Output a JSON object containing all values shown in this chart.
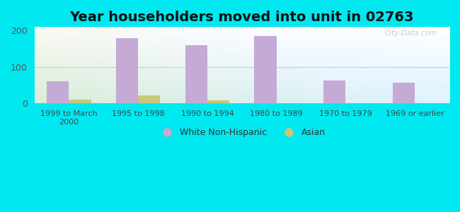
{
  "title": "Year householders moved into unit in 02763",
  "categories": [
    "1999 to March\n2000",
    "1995 to 1998",
    "1990 to 1994",
    "1980 to 1989",
    "1970 to 1979",
    "1969 or earlier"
  ],
  "white_non_hispanic": [
    60,
    180,
    160,
    185,
    62,
    57
  ],
  "asian": [
    10,
    22,
    8,
    0,
    0,
    0
  ],
  "white_color": "#c4aad4",
  "asian_color": "#c8c87a",
  "ylim": [
    0,
    210
  ],
  "yticks": [
    0,
    100,
    200
  ],
  "bar_width": 0.32,
  "bg_outer": "#00e8f0",
  "watermark": "City-Data.com",
  "title_fontsize": 14,
  "legend_labels": [
    "White Non-Hispanic",
    "Asian"
  ]
}
